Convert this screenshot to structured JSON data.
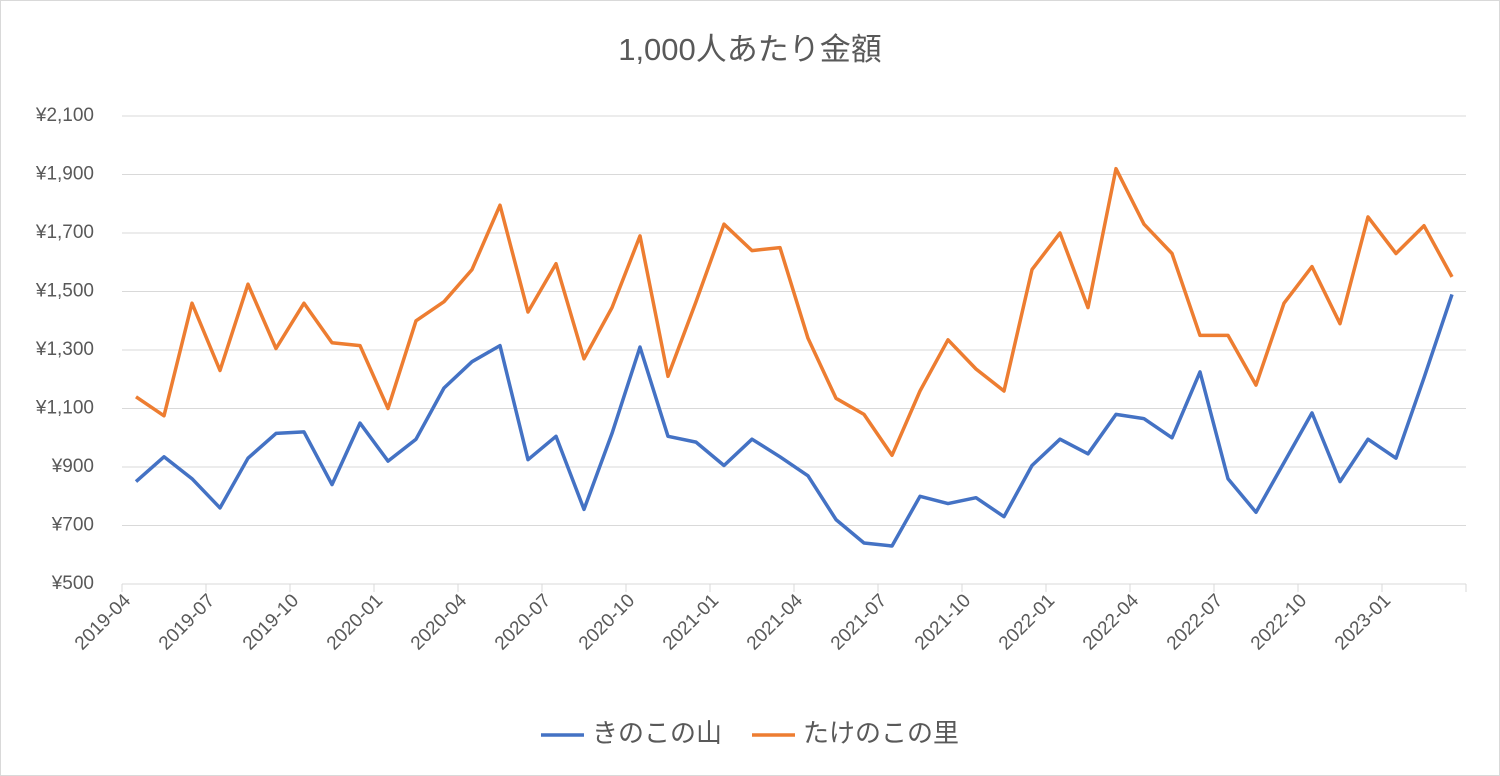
{
  "chart_data": {
    "type": "line",
    "title": "1,000人あたり金額",
    "categories": [
      "2019-04",
      null,
      null,
      "2019-07",
      null,
      null,
      "2019-10",
      null,
      null,
      "2020-01",
      null,
      null,
      "2020-04",
      null,
      null,
      "2020-07",
      null,
      null,
      "2020-10",
      null,
      null,
      "2021-01",
      null,
      null,
      "2021-04",
      null,
      null,
      "2021-07",
      null,
      null,
      "2021-10",
      null,
      null,
      "2022-01",
      null,
      null,
      "2022-04",
      null,
      null,
      "2022-07",
      null,
      null,
      "2022-10",
      null,
      null,
      "2023-01",
      null,
      null
    ],
    "series": [
      {
        "name": "きのこの山",
        "color": "#4472c4",
        "values": [
          850,
          935,
          860,
          760,
          930,
          1015,
          1020,
          840,
          1050,
          920,
          995,
          1170,
          1260,
          1315,
          925,
          1005,
          755,
          1015,
          1310,
          1005,
          985,
          905,
          995,
          935,
          870,
          720,
          640,
          630,
          800,
          775,
          795,
          730,
          905,
          995,
          945,
          1080,
          1065,
          1000,
          1225,
          860,
          745,
          915,
          1085,
          850,
          995,
          930,
          1205,
          1490
        ]
      },
      {
        "name": "たけのこの里",
        "color": "#ed7d31",
        "values": [
          1140,
          1075,
          1460,
          1230,
          1525,
          1305,
          1460,
          1325,
          1315,
          1100,
          1400,
          1465,
          1575,
          1795,
          1430,
          1595,
          1270,
          1445,
          1690,
          1210,
          1465,
          1730,
          1640,
          1650,
          1340,
          1135,
          1080,
          940,
          1160,
          1335,
          1235,
          1160,
          1575,
          1700,
          1445,
          1920,
          1730,
          1630,
          1350,
          1350,
          1180,
          1460,
          1585,
          1390,
          1755,
          1630,
          1725,
          1550
        ]
      }
    ],
    "ylim": [
      500,
      2100
    ],
    "yticks": [
      {
        "value": 500,
        "label": "¥500"
      },
      {
        "value": 700,
        "label": "¥700"
      },
      {
        "value": 900,
        "label": "¥900"
      },
      {
        "value": 1100,
        "label": "¥1,100"
      },
      {
        "value": 1300,
        "label": "¥1,300"
      },
      {
        "value": 1500,
        "label": "¥1,500"
      },
      {
        "value": 1700,
        "label": "¥1,700"
      },
      {
        "value": 1900,
        "label": "¥1,900"
      },
      {
        "value": 2100,
        "label": "¥2,100"
      }
    ],
    "grid": true,
    "legend": "bottom"
  }
}
